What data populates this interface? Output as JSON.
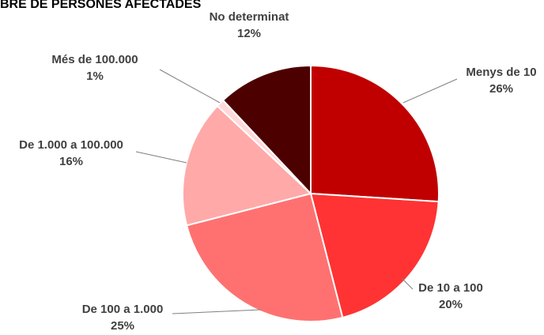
{
  "chart_data": {
    "type": "pie",
    "title": "BRE DE PERSONES AFECTADES",
    "categories": [
      "Menys de 10",
      "De 10 a 100",
      "De 100 a 1.000",
      "De 1.000 a 100.000",
      "Més de 100.000",
      "No determinat"
    ],
    "values": [
      26,
      20,
      25,
      16,
      1,
      12
    ],
    "value_labels": [
      "26%",
      "20%",
      "25%",
      "16%",
      "1%",
      "12%"
    ],
    "colors": [
      "#c00000",
      "#ff3333",
      "#ff7171",
      "#ffa9a9",
      "#ffd9d9",
      "#4d0000"
    ]
  }
}
